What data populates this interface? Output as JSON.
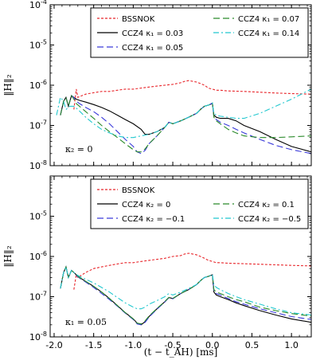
{
  "chart_data": [
    {
      "type": "line",
      "ylabel": "‖H‖₂",
      "xlabel": "",
      "xlim": [
        -2.05,
        1.25
      ],
      "yscale": "log",
      "ylim": [
        1e-08,
        0.0001
      ],
      "y_ticks": [
        {
          "value": 1e-08,
          "base": "10",
          "exp": "-8"
        },
        {
          "value": 1e-07,
          "base": "10",
          "exp": "-7"
        },
        {
          "value": 1e-06,
          "base": "10",
          "exp": "-6"
        },
        {
          "value": 1e-05,
          "base": "10",
          "exp": "-5"
        },
        {
          "value": 0.0001,
          "base": "10",
          "exp": "-4"
        }
      ],
      "annotation": "κ₂ = 0",
      "legend_placement": "top-right",
      "series": [
        {
          "name": "BSSNOK",
          "color": "#e8262b",
          "dash": "3,2",
          "x": [
            -1.75,
            -1.72,
            -1.7,
            -1.6,
            -1.5,
            -1.4,
            -1.3,
            -1.2,
            -1.1,
            -1.0,
            -0.9,
            -0.8,
            -0.7,
            -0.6,
            -0.5,
            -0.4,
            -0.35,
            -0.3,
            -0.25,
            -0.2,
            -0.15,
            -0.1,
            -0.05,
            0.0,
            0.05,
            0.1,
            0.2,
            0.4,
            0.6,
            0.8,
            1.0,
            1.25
          ],
          "y": [
            2.5e-07,
            8e-07,
            5e-07,
            6e-07,
            6.5e-07,
            7e-07,
            7e-07,
            7.5e-07,
            8e-07,
            8e-07,
            8.5e-07,
            9e-07,
            9.5e-07,
            1e-06,
            1.05e-06,
            1.15e-06,
            1.25e-06,
            1.3e-06,
            1.25e-06,
            1.2e-06,
            1.1e-06,
            1e-06,
            8.5e-07,
            8e-07,
            7.5e-07,
            7.5e-07,
            7.2e-07,
            7e-07,
            6.7e-07,
            6.4e-07,
            6.2e-07,
            6e-07
          ]
        },
        {
          "name": "CCZ4 κ₁ = 0.03",
          "color": "#000000",
          "dash": "",
          "x": [
            -1.92,
            -1.88,
            -1.85,
            -1.82,
            -1.78,
            -1.75,
            -1.72,
            -1.68,
            -1.6,
            -1.5,
            -1.4,
            -1.3,
            -1.2,
            -1.1,
            -1.0,
            -0.9,
            -0.85,
            -0.8,
            -0.7,
            -0.6,
            -0.55,
            -0.5,
            -0.4,
            -0.3,
            -0.2,
            -0.15,
            -0.1,
            -0.05,
            0.0,
            0.02,
            0.05,
            0.1,
            0.2,
            0.3,
            0.4,
            0.6,
            0.8,
            1.0,
            1.25
          ],
          "y": [
            1.8e-07,
            4e-07,
            5e-07,
            3e-07,
            5.5e-07,
            5e-07,
            4.5e-07,
            4.2e-07,
            3.8e-07,
            3.3e-07,
            2.8e-07,
            2.3e-07,
            1.8e-07,
            1.4e-07,
            1.1e-07,
            8e-08,
            6e-08,
            6e-08,
            7e-08,
            9e-08,
            1.2e-07,
            1.1e-07,
            1.3e-07,
            1.6e-07,
            2e-07,
            2.5e-07,
            3e-07,
            3.2e-07,
            3.5e-07,
            1.8e-07,
            1.6e-07,
            1.5e-07,
            1.5e-07,
            1.3e-07,
            1e-07,
            7e-08,
            4.5e-08,
            3e-08,
            2.2e-08
          ]
        },
        {
          "name": "CCZ4 κ₁ = 0.05",
          "color": "#3a3adb",
          "dash": "8,4",
          "x": [
            -1.92,
            -1.88,
            -1.85,
            -1.82,
            -1.78,
            -1.75,
            -1.72,
            -1.68,
            -1.6,
            -1.5,
            -1.4,
            -1.3,
            -1.2,
            -1.1,
            -1.0,
            -0.95,
            -0.9,
            -0.85,
            -0.8,
            -0.7,
            -0.6,
            -0.55,
            -0.5,
            -0.4,
            -0.3,
            -0.2,
            -0.15,
            -0.1,
            -0.05,
            0.0,
            0.02,
            0.05,
            0.1,
            0.2,
            0.3,
            0.4,
            0.6,
            0.8,
            1.0,
            1.25
          ],
          "y": [
            1.8e-07,
            4e-07,
            5e-07,
            3e-07,
            5.5e-07,
            5e-07,
            4e-07,
            3.5e-07,
            2.8e-07,
            2.2e-07,
            1.6e-07,
            1.1e-07,
            7e-08,
            4.5e-08,
            3e-08,
            2.2e-08,
            2e-08,
            2.4e-08,
            3.5e-08,
            5.5e-08,
            9e-08,
            1.2e-07,
            1.1e-07,
            1.3e-07,
            1.6e-07,
            2e-07,
            2.5e-07,
            3e-07,
            3.2e-07,
            3.6e-07,
            1.6e-07,
            1.4e-07,
            1.2e-07,
            1e-07,
            8e-08,
            6.5e-08,
            4.5e-08,
            3.2e-08,
            2.5e-08,
            2e-08
          ]
        },
        {
          "name": "CCZ4 κ₁ = 0.07",
          "color": "#2a8a2a",
          "dash": "8,4",
          "x": [
            -1.92,
            -1.88,
            -1.85,
            -1.82,
            -1.78,
            -1.75,
            -1.72,
            -1.68,
            -1.6,
            -1.5,
            -1.4,
            -1.3,
            -1.2,
            -1.1,
            -1.0,
            -0.95,
            -0.9,
            -0.85,
            -0.8,
            -0.7,
            -0.6,
            -0.55,
            -0.5,
            -0.4,
            -0.3,
            -0.2,
            -0.15,
            -0.1,
            -0.05,
            0.0,
            0.02,
            0.05,
            0.1,
            0.2,
            0.3,
            0.4,
            0.6,
            0.8,
            1.0,
            1.25
          ],
          "y": [
            1.8e-07,
            4e-07,
            5e-07,
            3e-07,
            5.5e-07,
            4.5e-07,
            3.5e-07,
            3e-07,
            2.2e-07,
            1.5e-07,
            1e-07,
            7e-08,
            5e-08,
            3.5e-08,
            2.5e-08,
            2.2e-08,
            2.2e-08,
            2.6e-08,
            3.5e-08,
            5.5e-08,
            9e-08,
            1.2e-07,
            1.1e-07,
            1.3e-07,
            1.6e-07,
            2e-07,
            2.5e-07,
            3e-07,
            3.2e-07,
            3.6e-07,
            1.6e-07,
            1.3e-07,
            1.1e-07,
            8e-08,
            6.5e-08,
            5.5e-08,
            5e-08,
            5e-08,
            5.2e-08,
            5.5e-08
          ]
        },
        {
          "name": "CCZ4 κ₁ = 0.14",
          "color": "#22c8cf",
          "dash": "7,3,2,3",
          "x": [
            -1.97,
            -1.92,
            -1.88,
            -1.85,
            -1.8,
            -1.75,
            -1.7,
            -1.6,
            -1.5,
            -1.4,
            -1.3,
            -1.2,
            -1.1,
            -1.0,
            -0.9,
            -0.8,
            -0.7,
            -0.6,
            -0.55,
            -0.5,
            -0.4,
            -0.3,
            -0.2,
            -0.15,
            -0.1,
            -0.05,
            0.0,
            0.02,
            0.05,
            0.1,
            0.2,
            0.3,
            0.4,
            0.6,
            0.8,
            1.0,
            1.25
          ],
          "y": [
            1.8e-07,
            5e-07,
            4e-07,
            2.5e-07,
            3e-07,
            3e-07,
            2.5e-07,
            1.6e-07,
            1.1e-07,
            8e-08,
            6.5e-08,
            5.5e-08,
            5e-08,
            5e-08,
            5.5e-08,
            6e-08,
            7e-08,
            9e-08,
            1.2e-07,
            1.1e-07,
            1.3e-07,
            1.6e-07,
            2e-07,
            2.5e-07,
            3e-07,
            3.2e-07,
            3.6e-07,
            2e-07,
            1.8e-07,
            1.7e-07,
            1.6e-07,
            1.5e-07,
            1.5e-07,
            2e-07,
            3e-07,
            4.5e-07,
            8e-07
          ]
        }
      ]
    },
    {
      "type": "line",
      "ylabel": "‖H‖₂",
      "xlabel": "(t − t_AH) [ms]",
      "xlim": [
        -2.05,
        1.25
      ],
      "x_ticks": [
        "-2.0",
        "-1.5",
        "-1.0",
        "-0.5",
        "0.0",
        "0.5",
        "1.0"
      ],
      "x_tick_values": [
        -2.0,
        -1.5,
        -1.0,
        -0.5,
        0.0,
        0.5,
        1.0
      ],
      "yscale": "log",
      "ylim": [
        1e-08,
        0.0001
      ],
      "y_ticks": [
        {
          "value": 1e-08,
          "base": "10",
          "exp": "-8"
        },
        {
          "value": 1e-07,
          "base": "10",
          "exp": "-7"
        },
        {
          "value": 1e-06,
          "base": "10",
          "exp": "-6"
        },
        {
          "value": 1e-05,
          "base": "10",
          "exp": "-5"
        }
      ],
      "annotation": "κ₁ = 0.05",
      "legend_placement": "top-right",
      "series": [
        {
          "name": "BSSNOK",
          "color": "#e8262b",
          "dash": "3,2",
          "x": [
            -1.75,
            -1.72,
            -1.7,
            -1.6,
            -1.5,
            -1.4,
            -1.3,
            -1.2,
            -1.1,
            -1.0,
            -0.9,
            -0.8,
            -0.7,
            -0.6,
            -0.5,
            -0.4,
            -0.35,
            -0.3,
            -0.25,
            -0.2,
            -0.15,
            -0.1,
            -0.05,
            0.0,
            0.05,
            0.1,
            0.2,
            0.4,
            0.6,
            0.8,
            1.0,
            1.25
          ],
          "y": [
            1.5e-07,
            3.5e-07,
            3e-07,
            4e-07,
            5e-07,
            5.5e-07,
            6e-07,
            6.5e-07,
            7e-07,
            7e-07,
            7.5e-07,
            8e-07,
            8.5e-07,
            9e-07,
            1e-06,
            1.05e-06,
            1.15e-06,
            1.2e-06,
            1.15e-06,
            1.1e-06,
            1e-06,
            9e-07,
            8e-07,
            7.5e-07,
            7e-07,
            7e-07,
            6.8e-07,
            6.6e-07,
            6.4e-07,
            6.2e-07,
            6e-07,
            5.8e-07
          ]
        },
        {
          "name": "CCZ4 κ₂ = 0",
          "color": "#000000",
          "dash": "",
          "x": [
            -1.92,
            -1.88,
            -1.85,
            -1.82,
            -1.78,
            -1.75,
            -1.72,
            -1.68,
            -1.6,
            -1.5,
            -1.4,
            -1.3,
            -1.2,
            -1.1,
            -1.0,
            -0.95,
            -0.9,
            -0.85,
            -0.8,
            -0.7,
            -0.6,
            -0.55,
            -0.5,
            -0.4,
            -0.3,
            -0.2,
            -0.15,
            -0.1,
            -0.05,
            0.0,
            0.02,
            0.05,
            0.1,
            0.2,
            0.3,
            0.4,
            0.6,
            0.8,
            1.0,
            1.25
          ],
          "y": [
            1.6e-07,
            4e-07,
            5.5e-07,
            3e-07,
            4.5e-07,
            4e-07,
            3.5e-07,
            3e-07,
            2.4e-07,
            1.8e-07,
            1.3e-07,
            9e-08,
            6e-08,
            4e-08,
            2.8e-08,
            2.2e-08,
            2e-08,
            2.4e-08,
            3.2e-08,
            5e-08,
            7.5e-08,
            9.5e-08,
            9e-08,
            1.2e-07,
            1.5e-07,
            2e-07,
            2.5e-07,
            3e-07,
            3.2e-07,
            3.5e-07,
            1.3e-07,
            1.1e-07,
            1e-07,
            8.5e-08,
            7e-08,
            6e-08,
            4.5e-08,
            3.5e-08,
            2.8e-08,
            2.3e-08
          ]
        },
        {
          "name": "CCZ4 κ₂ = −0.1",
          "color": "#3a3adb",
          "dash": "8,4",
          "x": [
            -1.92,
            -1.88,
            -1.85,
            -1.82,
            -1.78,
            -1.75,
            -1.72,
            -1.68,
            -1.6,
            -1.5,
            -1.4,
            -1.3,
            -1.2,
            -1.1,
            -1.0,
            -0.95,
            -0.9,
            -0.85,
            -0.8,
            -0.7,
            -0.6,
            -0.55,
            -0.5,
            -0.4,
            -0.3,
            -0.2,
            -0.15,
            -0.1,
            -0.05,
            0.0,
            0.02,
            0.05,
            0.1,
            0.2,
            0.3,
            0.4,
            0.6,
            0.8,
            1.0,
            1.25
          ],
          "y": [
            1.6e-07,
            4e-07,
            5.5e-07,
            3e-07,
            4.5e-07,
            4e-07,
            3.4e-07,
            2.9e-07,
            2.3e-07,
            1.7e-07,
            1.2e-07,
            8.5e-08,
            5.8e-08,
            3.9e-08,
            2.7e-08,
            2.1e-08,
            2e-08,
            2.3e-08,
            3.1e-08,
            4.9e-08,
            7.4e-08,
            9.4e-08,
            8.9e-08,
            1.2e-07,
            1.5e-07,
            2e-07,
            2.5e-07,
            3e-07,
            3.2e-07,
            3.5e-07,
            1.4e-07,
            1.2e-07,
            1.1e-07,
            9e-08,
            7.5e-08,
            6.5e-08,
            5e-08,
            4e-08,
            3.2e-08,
            2.7e-08
          ]
        },
        {
          "name": "CCZ4 κ₂ = 0.1",
          "color": "#2a8a2a",
          "dash": "8,4",
          "x": [
            -1.92,
            -1.88,
            -1.85,
            -1.82,
            -1.78,
            -1.75,
            -1.72,
            -1.68,
            -1.6,
            -1.5,
            -1.4,
            -1.3,
            -1.2,
            -1.1,
            -1.0,
            -0.95,
            -0.9,
            -0.85,
            -0.8,
            -0.7,
            -0.6,
            -0.55,
            -0.5,
            -0.4,
            -0.3,
            -0.2,
            -0.15,
            -0.1,
            -0.05,
            0.0,
            0.02,
            0.05,
            0.1,
            0.2,
            0.3,
            0.4,
            0.6,
            0.8,
            1.0,
            1.25
          ],
          "y": [
            1.6e-07,
            4e-07,
            5.5e-07,
            3e-07,
            4.5e-07,
            4e-07,
            3.5e-07,
            3e-07,
            2.4e-07,
            1.8e-07,
            1.3e-07,
            9e-08,
            6e-08,
            4e-08,
            2.8e-08,
            2.2e-08,
            2.1e-08,
            2.5e-08,
            3.3e-08,
            5.1e-08,
            7.6e-08,
            9.6e-08,
            9.1e-08,
            1.2e-07,
            1.5e-07,
            2e-07,
            2.5e-07,
            3e-07,
            3.2e-07,
            3.5e-07,
            1.5e-07,
            1.3e-07,
            1.2e-07,
            1e-07,
            8.5e-08,
            7.5e-08,
            5.5e-08,
            4.5e-08,
            3.8e-08,
            3.3e-08
          ]
        },
        {
          "name": "CCZ4 κ₂ = −0.5",
          "color": "#22c8cf",
          "dash": "7,3,2,3",
          "x": [
            -1.92,
            -1.88,
            -1.85,
            -1.82,
            -1.78,
            -1.75,
            -1.72,
            -1.68,
            -1.6,
            -1.5,
            -1.4,
            -1.3,
            -1.2,
            -1.1,
            -1.0,
            -0.95,
            -0.9,
            -0.85,
            -0.8,
            -0.7,
            -0.6,
            -0.55,
            -0.5,
            -0.4,
            -0.3,
            -0.2,
            -0.15,
            -0.1,
            -0.05,
            0.0,
            0.02,
            0.05,
            0.1,
            0.2,
            0.3,
            0.4,
            0.6,
            0.8,
            1.0,
            1.25
          ],
          "y": [
            1.6e-07,
            4e-07,
            5.5e-07,
            3e-07,
            4.5e-07,
            4e-07,
            3.6e-07,
            3.2e-07,
            2.7e-07,
            2.2e-07,
            1.7e-07,
            1.3e-07,
            9.5e-08,
            7e-08,
            5.5e-08,
            5e-08,
            5e-08,
            5.5e-08,
            6.5e-08,
            8e-08,
            1e-07,
            1.2e-07,
            1.1e-07,
            1.3e-07,
            1.6e-07,
            2e-07,
            2.5e-07,
            3e-07,
            3.2e-07,
            3.6e-07,
            2e-07,
            1.7e-07,
            1.5e-07,
            1.2e-07,
            1e-07,
            8.5e-08,
            6.5e-08,
            5e-08,
            4e-08,
            3.5e-08
          ]
        }
      ]
    }
  ]
}
